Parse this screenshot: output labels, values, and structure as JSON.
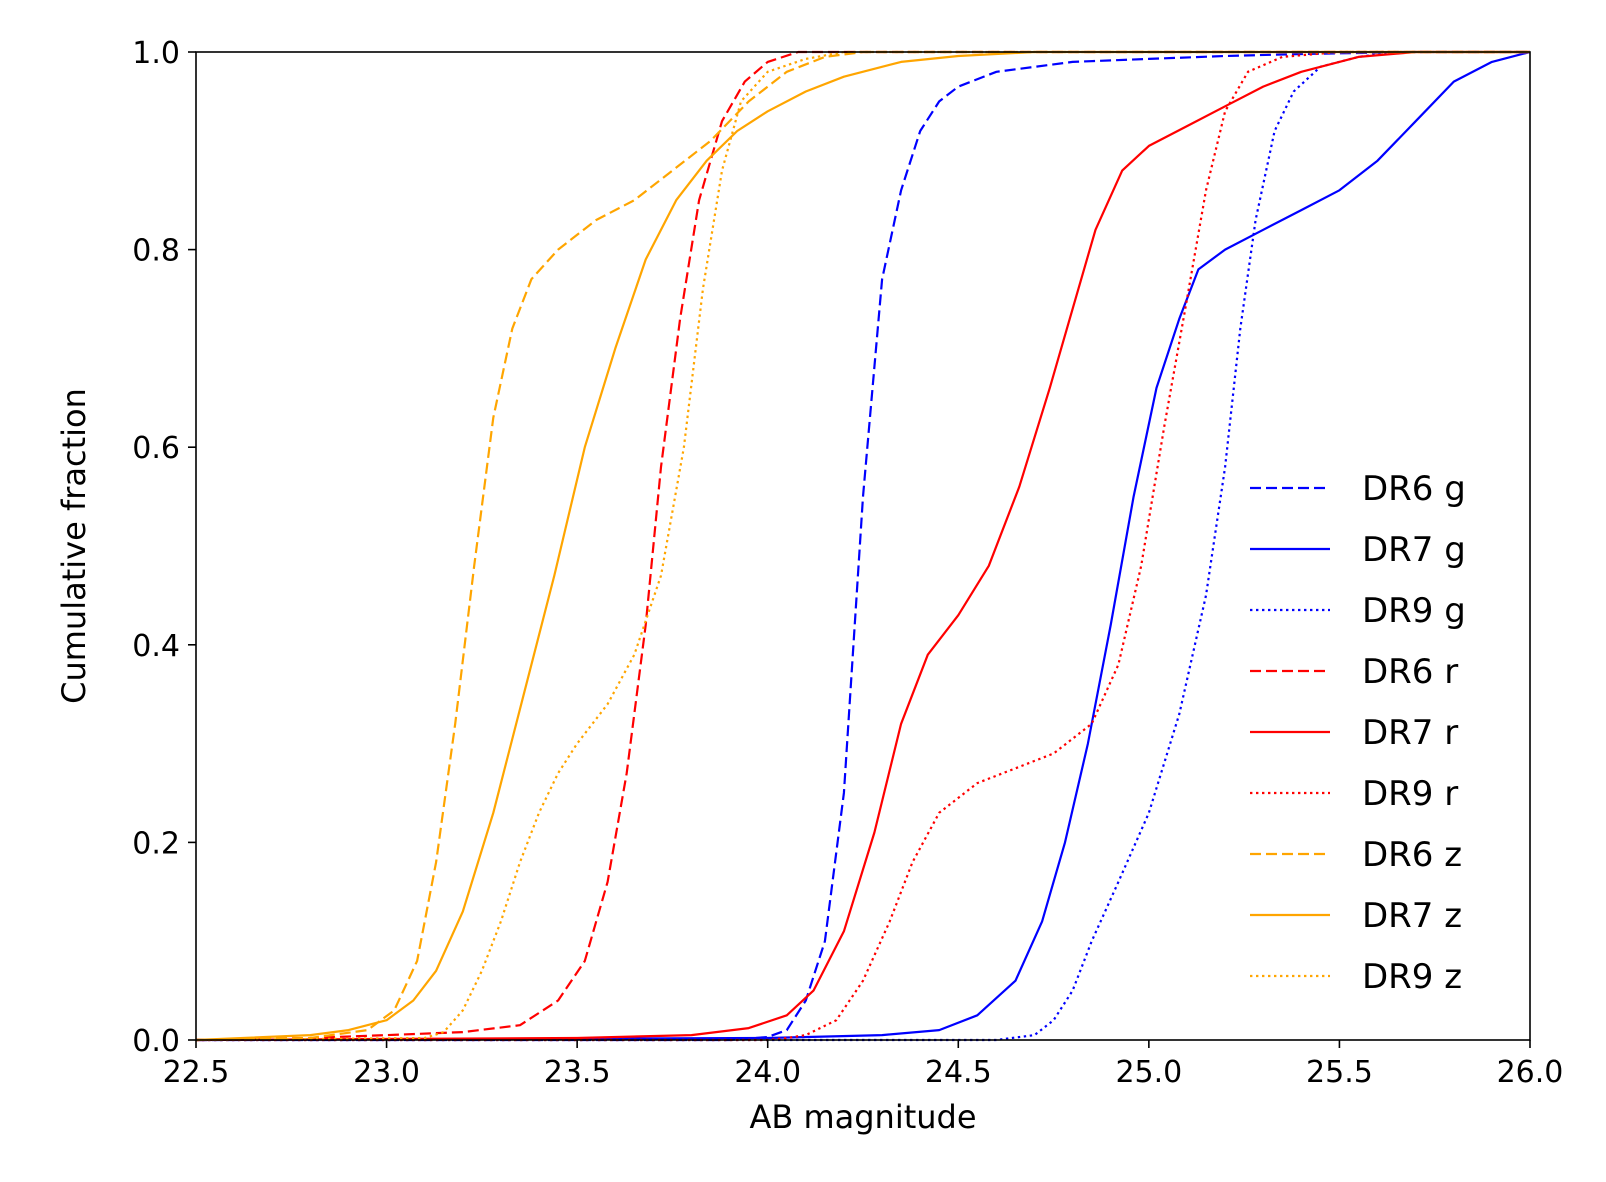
{
  "chart_data": {
    "type": "line",
    "title": "",
    "xlabel": "AB magnitude",
    "ylabel": "Cumulative fraction",
    "xlim": [
      22.5,
      26.0
    ],
    "ylim": [
      0.0,
      1.0
    ],
    "xticks": [
      "22.5",
      "23.0",
      "23.5",
      "24.0",
      "24.5",
      "25.0",
      "25.5",
      "26.0"
    ],
    "yticks": [
      "0.0",
      "0.2",
      "0.4",
      "0.6",
      "0.8",
      "1.0"
    ],
    "grid": false,
    "legend_position": "lower-right",
    "series": [
      {
        "name": "DR6 g",
        "color": "#0000ff",
        "style": "dashed",
        "points": [
          [
            22.5,
            0
          ],
          [
            23.9,
            0.0
          ],
          [
            24.0,
            0.003
          ],
          [
            24.05,
            0.01
          ],
          [
            24.1,
            0.04
          ],
          [
            24.15,
            0.1
          ],
          [
            24.2,
            0.25
          ],
          [
            24.25,
            0.55
          ],
          [
            24.3,
            0.77
          ],
          [
            24.35,
            0.86
          ],
          [
            24.4,
            0.92
          ],
          [
            24.45,
            0.95
          ],
          [
            24.5,
            0.965
          ],
          [
            24.6,
            0.98
          ],
          [
            24.8,
            0.99
          ],
          [
            25.0,
            0.993
          ],
          [
            25.2,
            0.996
          ],
          [
            25.4,
            0.998
          ],
          [
            25.7,
            1.0
          ],
          [
            26.0,
            1.0
          ]
        ]
      },
      {
        "name": "DR7 g",
        "color": "#0000ff",
        "style": "solid",
        "points": [
          [
            22.5,
            0
          ],
          [
            24.0,
            0.002
          ],
          [
            24.3,
            0.005
          ],
          [
            24.45,
            0.01
          ],
          [
            24.55,
            0.025
          ],
          [
            24.65,
            0.06
          ],
          [
            24.72,
            0.12
          ],
          [
            24.78,
            0.2
          ],
          [
            24.84,
            0.3
          ],
          [
            24.9,
            0.42
          ],
          [
            24.96,
            0.55
          ],
          [
            25.02,
            0.66
          ],
          [
            25.08,
            0.73
          ],
          [
            25.13,
            0.78
          ],
          [
            25.2,
            0.8
          ],
          [
            25.3,
            0.82
          ],
          [
            25.4,
            0.84
          ],
          [
            25.5,
            0.86
          ],
          [
            25.6,
            0.89
          ],
          [
            25.7,
            0.93
          ],
          [
            25.8,
            0.97
          ],
          [
            25.9,
            0.99
          ],
          [
            26.0,
            1.0
          ]
        ]
      },
      {
        "name": "DR9 g",
        "color": "#0000ff",
        "style": "dotted",
        "points": [
          [
            22.5,
            0
          ],
          [
            24.6,
            0.0
          ],
          [
            24.7,
            0.005
          ],
          [
            24.75,
            0.02
          ],
          [
            24.8,
            0.05
          ],
          [
            24.85,
            0.1
          ],
          [
            24.92,
            0.16
          ],
          [
            25.0,
            0.23
          ],
          [
            25.08,
            0.33
          ],
          [
            25.15,
            0.45
          ],
          [
            25.2,
            0.58
          ],
          [
            25.24,
            0.72
          ],
          [
            25.28,
            0.83
          ],
          [
            25.33,
            0.92
          ],
          [
            25.38,
            0.96
          ],
          [
            25.45,
            0.985
          ],
          [
            25.55,
            0.995
          ],
          [
            25.65,
            1.0
          ],
          [
            26.0,
            1.0
          ]
        ]
      },
      {
        "name": "DR6 r",
        "color": "#ff0000",
        "style": "dashed",
        "points": [
          [
            22.5,
            0
          ],
          [
            22.8,
            0.002
          ],
          [
            23.0,
            0.005
          ],
          [
            23.2,
            0.008
          ],
          [
            23.35,
            0.015
          ],
          [
            23.45,
            0.04
          ],
          [
            23.52,
            0.08
          ],
          [
            23.58,
            0.16
          ],
          [
            23.63,
            0.27
          ],
          [
            23.68,
            0.42
          ],
          [
            23.72,
            0.58
          ],
          [
            23.77,
            0.73
          ],
          [
            23.82,
            0.85
          ],
          [
            23.88,
            0.93
          ],
          [
            23.94,
            0.97
          ],
          [
            24.0,
            0.99
          ],
          [
            24.08,
            1.0
          ],
          [
            26.0,
            1.0
          ]
        ]
      },
      {
        "name": "DR7 r",
        "color": "#ff0000",
        "style": "solid",
        "points": [
          [
            22.5,
            0
          ],
          [
            23.5,
            0.002
          ],
          [
            23.8,
            0.005
          ],
          [
            23.95,
            0.012
          ],
          [
            24.05,
            0.025
          ],
          [
            24.12,
            0.05
          ],
          [
            24.2,
            0.11
          ],
          [
            24.28,
            0.21
          ],
          [
            24.35,
            0.32
          ],
          [
            24.42,
            0.39
          ],
          [
            24.5,
            0.43
          ],
          [
            24.58,
            0.48
          ],
          [
            24.66,
            0.56
          ],
          [
            24.74,
            0.66
          ],
          [
            24.8,
            0.74
          ],
          [
            24.86,
            0.82
          ],
          [
            24.93,
            0.88
          ],
          [
            25.0,
            0.905
          ],
          [
            25.1,
            0.925
          ],
          [
            25.2,
            0.945
          ],
          [
            25.3,
            0.965
          ],
          [
            25.4,
            0.98
          ],
          [
            25.55,
            0.995
          ],
          [
            25.7,
            1.0
          ],
          [
            26.0,
            1.0
          ]
        ]
      },
      {
        "name": "DR9 r",
        "color": "#ff0000",
        "style": "dotted",
        "points": [
          [
            22.5,
            0
          ],
          [
            24.0,
            0.0
          ],
          [
            24.05,
            0.002
          ],
          [
            24.1,
            0.005
          ],
          [
            24.18,
            0.02
          ],
          [
            24.25,
            0.06
          ],
          [
            24.32,
            0.12
          ],
          [
            24.38,
            0.18
          ],
          [
            24.45,
            0.23
          ],
          [
            24.55,
            0.26
          ],
          [
            24.65,
            0.275
          ],
          [
            24.75,
            0.29
          ],
          [
            24.85,
            0.32
          ],
          [
            24.92,
            0.38
          ],
          [
            24.98,
            0.48
          ],
          [
            25.04,
            0.62
          ],
          [
            25.1,
            0.75
          ],
          [
            25.15,
            0.86
          ],
          [
            25.2,
            0.94
          ],
          [
            25.26,
            0.98
          ],
          [
            25.35,
            0.995
          ],
          [
            25.5,
            1.0
          ],
          [
            26.0,
            1.0
          ]
        ]
      },
      {
        "name": "DR6 z",
        "color": "#ffa500",
        "style": "dashed",
        "points": [
          [
            22.5,
            0
          ],
          [
            22.8,
            0.002
          ],
          [
            22.95,
            0.01
          ],
          [
            23.02,
            0.03
          ],
          [
            23.08,
            0.08
          ],
          [
            23.13,
            0.18
          ],
          [
            23.18,
            0.32
          ],
          [
            23.23,
            0.48
          ],
          [
            23.28,
            0.63
          ],
          [
            23.33,
            0.72
          ],
          [
            23.38,
            0.77
          ],
          [
            23.45,
            0.8
          ],
          [
            23.55,
            0.83
          ],
          [
            23.65,
            0.85
          ],
          [
            23.75,
            0.88
          ],
          [
            23.85,
            0.91
          ],
          [
            23.95,
            0.95
          ],
          [
            24.05,
            0.98
          ],
          [
            24.15,
            0.995
          ],
          [
            24.25,
            1.0
          ],
          [
            26.0,
            1.0
          ]
        ]
      },
      {
        "name": "DR7 z",
        "color": "#ffa500",
        "style": "solid",
        "points": [
          [
            22.5,
            0
          ],
          [
            22.8,
            0.005
          ],
          [
            22.9,
            0.01
          ],
          [
            23.0,
            0.02
          ],
          [
            23.07,
            0.04
          ],
          [
            23.13,
            0.07
          ],
          [
            23.2,
            0.13
          ],
          [
            23.28,
            0.23
          ],
          [
            23.36,
            0.35
          ],
          [
            23.44,
            0.47
          ],
          [
            23.52,
            0.6
          ],
          [
            23.6,
            0.7
          ],
          [
            23.68,
            0.79
          ],
          [
            23.76,
            0.85
          ],
          [
            23.84,
            0.89
          ],
          [
            23.92,
            0.92
          ],
          [
            24.0,
            0.94
          ],
          [
            24.1,
            0.96
          ],
          [
            24.2,
            0.975
          ],
          [
            24.35,
            0.99
          ],
          [
            24.5,
            0.996
          ],
          [
            24.7,
            1.0
          ],
          [
            26.0,
            1.0
          ]
        ]
      },
      {
        "name": "DR9 z",
        "color": "#ffa500",
        "style": "dotted",
        "points": [
          [
            22.5,
            0
          ],
          [
            23.1,
            0.002
          ],
          [
            23.15,
            0.008
          ],
          [
            23.2,
            0.03
          ],
          [
            23.25,
            0.07
          ],
          [
            23.3,
            0.12
          ],
          [
            23.35,
            0.18
          ],
          [
            23.4,
            0.23
          ],
          [
            23.45,
            0.27
          ],
          [
            23.5,
            0.3
          ],
          [
            23.58,
            0.34
          ],
          [
            23.65,
            0.39
          ],
          [
            23.72,
            0.47
          ],
          [
            23.78,
            0.6
          ],
          [
            23.83,
            0.76
          ],
          [
            23.88,
            0.88
          ],
          [
            23.93,
            0.95
          ],
          [
            24.0,
            0.98
          ],
          [
            24.1,
            0.993
          ],
          [
            24.2,
            1.0
          ],
          [
            26.0,
            1.0
          ]
        ]
      }
    ]
  }
}
